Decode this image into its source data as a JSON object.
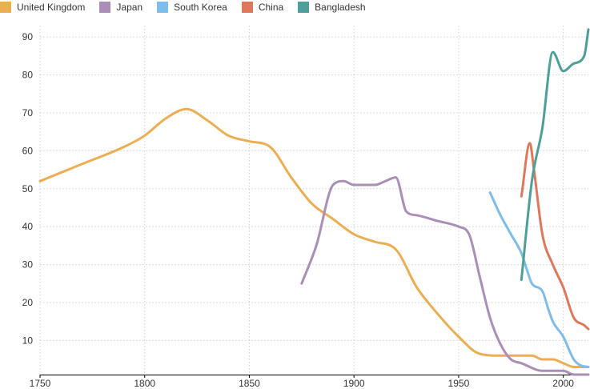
{
  "chart_data": {
    "type": "line",
    "title": "",
    "xlabel": "",
    "ylabel": "",
    "xlim": [
      1750,
      2012
    ],
    "ylim": [
      1,
      93
    ],
    "x_ticks": [
      1750,
      1800,
      1850,
      1900,
      1950,
      2000
    ],
    "y_ticks": [
      10,
      20,
      30,
      40,
      50,
      60,
      70,
      80,
      90
    ],
    "grid": true,
    "legend_position": "top-left",
    "series": [
      {
        "name": "United Kingdom",
        "color": "#ecae52",
        "points": [
          [
            1750,
            52
          ],
          [
            1770,
            56.5
          ],
          [
            1790,
            61
          ],
          [
            1800,
            64
          ],
          [
            1810,
            68.5
          ],
          [
            1820,
            71
          ],
          [
            1830,
            68
          ],
          [
            1840,
            64
          ],
          [
            1850,
            62.5
          ],
          [
            1860,
            61
          ],
          [
            1870,
            53
          ],
          [
            1880,
            46
          ],
          [
            1890,
            42
          ],
          [
            1900,
            38
          ],
          [
            1910,
            36
          ],
          [
            1920,
            34
          ],
          [
            1930,
            24
          ],
          [
            1940,
            17
          ],
          [
            1950,
            11
          ],
          [
            1960,
            6.5
          ],
          [
            1970,
            6
          ],
          [
            1980,
            6
          ],
          [
            1985,
            6
          ],
          [
            1990,
            5
          ],
          [
            1995,
            5
          ],
          [
            2000,
            4
          ],
          [
            2005,
            3
          ],
          [
            2012,
            3
          ]
        ]
      },
      {
        "name": "Japan",
        "color": "#aa8eb7",
        "points": [
          [
            1875,
            25
          ],
          [
            1882,
            35
          ],
          [
            1890,
            51
          ],
          [
            1895,
            52
          ],
          [
            1900,
            51
          ],
          [
            1910,
            51
          ],
          [
            1915,
            52
          ],
          [
            1920,
            53
          ],
          [
            1925,
            44
          ],
          [
            1930,
            43
          ],
          [
            1940,
            41.5
          ],
          [
            1950,
            40
          ],
          [
            1955,
            38
          ],
          [
            1960,
            27
          ],
          [
            1965,
            16
          ],
          [
            1970,
            9
          ],
          [
            1975,
            5
          ],
          [
            1980,
            4
          ],
          [
            1990,
            2
          ],
          [
            2000,
            2
          ],
          [
            2005,
            1
          ],
          [
            2012,
            1
          ]
        ]
      },
      {
        "name": "South Korea",
        "color": "#7ebde9",
        "points": [
          [
            1965,
            49
          ],
          [
            1970,
            43
          ],
          [
            1975,
            38
          ],
          [
            1980,
            33
          ],
          [
            1983,
            28
          ],
          [
            1985,
            25
          ],
          [
            1990,
            23
          ],
          [
            1993,
            18
          ],
          [
            1995,
            15
          ],
          [
            2000,
            11
          ],
          [
            2005,
            5
          ],
          [
            2008,
            3.5
          ],
          [
            2012,
            3
          ]
        ]
      },
      {
        "name": "China",
        "color": "#e1775a",
        "points": [
          [
            1980,
            48
          ],
          [
            1984,
            62
          ],
          [
            1986,
            55
          ],
          [
            1990,
            38
          ],
          [
            1995,
            30
          ],
          [
            2000,
            24
          ],
          [
            2005,
            16
          ],
          [
            2010,
            14
          ],
          [
            2012,
            13
          ]
        ]
      },
      {
        "name": "Bangladesh",
        "color": "#4e9f98",
        "points": [
          [
            1980,
            26
          ],
          [
            1985,
            52
          ],
          [
            1990,
            66
          ],
          [
            1995,
            86
          ],
          [
            2000,
            81
          ],
          [
            2005,
            83
          ],
          [
            2010,
            85
          ],
          [
            2012,
            92
          ]
        ]
      }
    ]
  }
}
